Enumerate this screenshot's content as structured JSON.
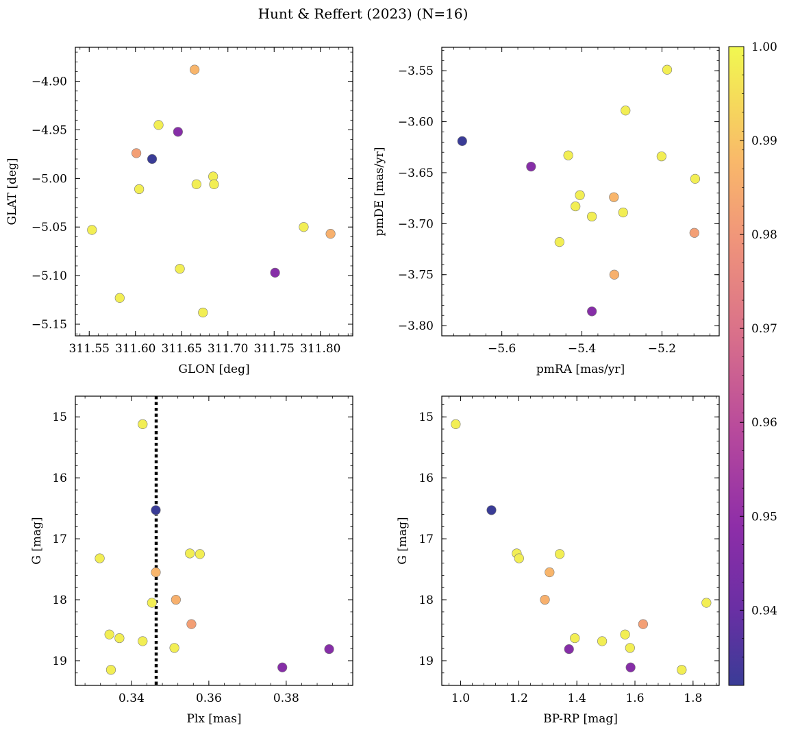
{
  "title": "Hunt & Reffert (2023) (N=16)",
  "colorbar": {
    "range": [
      0.932,
      1.0
    ],
    "ticks": [
      0.94,
      0.95,
      0.96,
      0.97,
      0.98,
      0.99,
      1.0
    ],
    "tick_labels": [
      "0.94",
      "0.95",
      "0.96",
      "0.97",
      "0.98",
      "0.99",
      "1.00"
    ],
    "colormap": "plasma"
  },
  "chart_data": [
    {
      "type": "scatter",
      "id": "glon-glat",
      "xlabel": "GLON [deg]",
      "ylabel": "GLAT [deg]",
      "xlim": [
        311.535,
        311.835
      ],
      "ylim": [
        -5.162,
        -4.865
      ],
      "y_inverted": false,
      "xticks": [
        311.55,
        311.6,
        311.65,
        311.7,
        311.75,
        311.8
      ],
      "xtick_labels": [
        "311.55",
        "311.60",
        "311.65",
        "311.70",
        "311.75",
        "311.80"
      ],
      "yticks": [
        -4.9,
        -4.95,
        -5.0,
        -5.05,
        -5.1,
        -5.15
      ],
      "ytick_labels": [
        "−4.90",
        "−4.95",
        "−5.00",
        "−5.05",
        "−5.10",
        "−5.15"
      ],
      "x": [
        311.664,
        311.625,
        311.601,
        311.618,
        311.646,
        311.684,
        311.604,
        311.666,
        311.685,
        311.553,
        311.782,
        311.811,
        311.648,
        311.751,
        311.583,
        311.673
      ],
      "y": [
        -4.888,
        -4.945,
        -4.974,
        -4.98,
        -4.952,
        -4.998,
        -5.011,
        -5.006,
        -5.006,
        -5.053,
        -5.05,
        -5.057,
        -5.093,
        -5.097,
        -5.123,
        -5.138
      ],
      "c": [
        0.987,
        0.998,
        0.982,
        0.932,
        0.947,
        0.998,
        0.998,
        0.998,
        0.998,
        0.998,
        0.998,
        0.986,
        0.998,
        0.947,
        0.998,
        0.998
      ]
    },
    {
      "type": "scatter",
      "id": "pmra-pmde",
      "xlabel": "pmRA [mas/yr]",
      "ylabel": "pmDE [mas/yr]",
      "xlim": [
        -5.75,
        -5.057
      ],
      "ylim": [
        -3.81,
        -3.527
      ],
      "y_inverted": false,
      "xticks": [
        -5.6,
        -5.4,
        -5.2
      ],
      "xtick_labels": [
        "−5.6",
        "−5.4",
        "−5.2"
      ],
      "yticks": [
        -3.55,
        -3.6,
        -3.65,
        -3.7,
        -3.75,
        -3.8
      ],
      "ytick_labels": [
        "−3.55",
        "−3.60",
        "−3.65",
        "−3.70",
        "−3.75",
        "−3.80"
      ],
      "x": [
        -5.187,
        -5.291,
        -5.699,
        -5.527,
        -5.434,
        -5.201,
        -5.117,
        -5.405,
        -5.416,
        -5.375,
        -5.32,
        -5.297,
        -5.119,
        -5.456,
        -5.319,
        -5.375
      ],
      "y": [
        -3.549,
        -3.589,
        -3.619,
        -3.644,
        -3.633,
        -3.634,
        -3.656,
        -3.672,
        -3.683,
        -3.693,
        -3.674,
        -3.689,
        -3.709,
        -3.718,
        -3.75,
        -3.786
      ],
      "c": [
        0.998,
        0.998,
        0.932,
        0.947,
        0.998,
        0.998,
        0.998,
        0.998,
        0.998,
        0.998,
        0.987,
        0.998,
        0.982,
        0.998,
        0.986,
        0.947
      ]
    },
    {
      "type": "scatter",
      "id": "plx-g",
      "xlabel": "Plx [mas]",
      "ylabel": "G [mag]",
      "xlim": [
        0.3255,
        0.3972
      ],
      "ylim": [
        19.405,
        14.66
      ],
      "y_inverted": true,
      "xticks": [
        0.34,
        0.36,
        0.38
      ],
      "xtick_labels": [
        "0.34",
        "0.36",
        "0.38"
      ],
      "yticks": [
        15,
        16,
        17,
        18,
        19
      ],
      "ytick_labels": [
        "15",
        "16",
        "17",
        "18",
        "19"
      ],
      "vline": 0.3464,
      "x": [
        0.3429,
        0.3463,
        0.3551,
        0.3577,
        0.3318,
        0.3463,
        0.3515,
        0.3453,
        0.3555,
        0.3343,
        0.3369,
        0.3429,
        0.3511,
        0.3911,
        0.379,
        0.3347
      ],
      "y": [
        15.12,
        16.53,
        17.24,
        17.25,
        17.32,
        17.55,
        18.0,
        18.05,
        18.4,
        18.57,
        18.63,
        18.68,
        18.79,
        18.81,
        19.11,
        19.15
      ],
      "c": [
        0.998,
        0.932,
        0.998,
        0.998,
        0.998,
        0.987,
        0.986,
        0.998,
        0.982,
        0.998,
        0.998,
        0.998,
        0.998,
        0.947,
        0.947,
        0.998
      ]
    },
    {
      "type": "scatter",
      "id": "bprp-g",
      "xlabel": "BP-RP [mag]",
      "ylabel": "G [mag]",
      "xlim": [
        0.935,
        1.89
      ],
      "ylim": [
        19.405,
        14.66
      ],
      "y_inverted": true,
      "xticks": [
        1.0,
        1.2,
        1.4,
        1.6,
        1.8
      ],
      "xtick_labels": [
        "1.0",
        "1.2",
        "1.4",
        "1.6",
        "1.8"
      ],
      "yticks": [
        15,
        16,
        17,
        18,
        19
      ],
      "ytick_labels": [
        "15",
        "16",
        "17",
        "18",
        "19"
      ],
      "x": [
        0.983,
        1.106,
        1.193,
        1.201,
        1.341,
        1.306,
        1.29,
        1.846,
        1.628,
        1.566,
        1.393,
        1.487,
        1.583,
        1.373,
        1.585,
        1.761
      ],
      "y": [
        15.12,
        16.53,
        17.24,
        17.32,
        17.25,
        17.55,
        18.0,
        18.05,
        18.4,
        18.57,
        18.63,
        18.68,
        18.79,
        18.81,
        19.11,
        19.15
      ],
      "c": [
        0.998,
        0.932,
        0.998,
        0.998,
        0.998,
        0.987,
        0.986,
        0.998,
        0.982,
        0.998,
        0.998,
        0.998,
        0.998,
        0.947,
        0.947,
        0.998
      ]
    }
  ]
}
